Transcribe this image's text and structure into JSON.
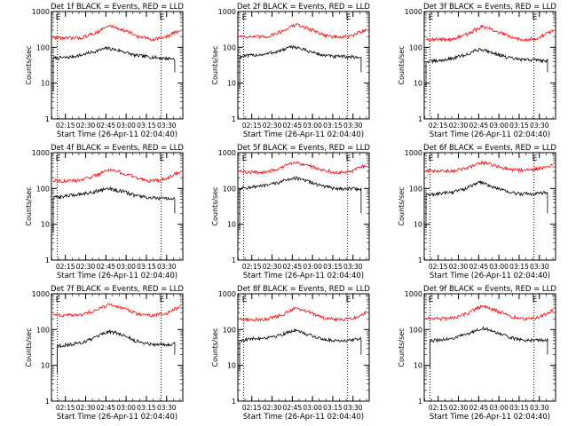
{
  "figure": {
    "panels": [
      {
        "title": "Det 1f BLACK = Events, RED = LLD"
      },
      {
        "title": "Det 2f BLACK = Events, RED = LLD"
      },
      {
        "title": "Det 3f BLACK = Events, RED = LLD"
      },
      {
        "title": "Det 4f BLACK = Events, RED = LLD"
      },
      {
        "title": "Det 5f BLACK = Events, RED = LLD"
      },
      {
        "title": "Det 6f BLACK = Events, RED = LLD"
      },
      {
        "title": "Det 7f BLACK = Events, RED = LLD"
      },
      {
        "title": "Det 8f BLACK = Events, RED = LLD"
      },
      {
        "title": "Det 9f BLACK = Events, RED = LLD"
      }
    ]
  },
  "chart_data": [
    {
      "type": "line",
      "title": "Det 1f BLACK = Events, RED = LLD",
      "xlabel": "Start Time (26-Apr-11 02:04:40)",
      "ylabel": "Counts/sec",
      "yscale": "log",
      "ylim": [
        1,
        1000
      ],
      "xlim": [
        "02:04:40",
        "03:42:00"
      ],
      "x_ticks": [
        "02:15",
        "02:30",
        "02:45",
        "03:00",
        "03:15",
        "03:30"
      ],
      "y_ticks": [
        "1",
        "10",
        "100",
        "1000"
      ],
      "markers": [
        {
          "label": "E",
          "x": "02:09"
        },
        {
          "label": "E",
          "x": "03:26"
        }
      ],
      "series": [
        {
          "color": "#000000",
          "start": "02:06",
          "end": "03:36",
          "values": [
            50,
            52,
            60,
            75,
            95,
            80,
            60,
            55,
            50,
            48
          ]
        },
        {
          "color": "#ff0000",
          "start": "02:06",
          "end": "03:40",
          "values": [
            190,
            180,
            185,
            250,
            400,
            300,
            200,
            170,
            190,
            300
          ]
        }
      ]
    },
    {
      "type": "line",
      "title": "Det 2f BLACK = Events, RED = LLD",
      "xlabel": "Start Time (26-Apr-11 02:04:40)",
      "ylabel": "Counts/sec",
      "yscale": "log",
      "ylim": [
        1,
        1000
      ],
      "xlim": [
        "02:04:40",
        "03:42:00"
      ],
      "x_ticks": [
        "02:15",
        "02:30",
        "02:45",
        "03:00",
        "03:15",
        "03:30"
      ],
      "y_ticks": [
        "1",
        "10",
        "100",
        "1000"
      ],
      "markers": [
        {
          "label": "E",
          "x": "02:09"
        },
        {
          "label": "E",
          "x": "03:26"
        }
      ],
      "series": [
        {
          "color": "#000000",
          "start": "02:06",
          "end": "03:36",
          "values": [
            55,
            60,
            65,
            80,
            105,
            80,
            62,
            55,
            55,
            52
          ]
        },
        {
          "color": "#ff0000",
          "start": "02:06",
          "end": "03:40",
          "values": [
            210,
            195,
            200,
            280,
            430,
            320,
            220,
            190,
            210,
            320
          ]
        }
      ]
    },
    {
      "type": "line",
      "title": "Det 3f BLACK = Events, RED = LLD",
      "xlabel": "Start Time (26-Apr-11 02:04:40)",
      "ylabel": "Counts/sec",
      "yscale": "log",
      "ylim": [
        1,
        1000
      ],
      "xlim": [
        "02:04:40",
        "03:42:00"
      ],
      "x_ticks": [
        "02:15",
        "02:30",
        "02:45",
        "03:00",
        "03:15",
        "03:30"
      ],
      "y_ticks": [
        "1",
        "10",
        "100",
        "1000"
      ],
      "markers": [
        {
          "label": "E",
          "x": "02:09"
        },
        {
          "label": "E",
          "x": "03:26"
        }
      ],
      "series": [
        {
          "color": "#000000",
          "start": "02:06",
          "end": "03:36",
          "values": [
            40,
            42,
            50,
            62,
            90,
            70,
            52,
            45,
            45,
            42
          ]
        },
        {
          "color": "#ff0000",
          "start": "02:06",
          "end": "03:40",
          "values": [
            170,
            165,
            170,
            240,
            380,
            280,
            190,
            165,
            180,
            290
          ]
        }
      ]
    },
    {
      "type": "line",
      "title": "Det 4f BLACK = Events, RED = LLD",
      "xlabel": "Start Time (26-Apr-11 02:04:40)",
      "ylabel": "Counts/sec",
      "yscale": "log",
      "ylim": [
        1,
        1000
      ],
      "xlim": [
        "02:04:40",
        "03:42:00"
      ],
      "x_ticks": [
        "02:15",
        "02:30",
        "02:45",
        "03:00",
        "03:15",
        "03:30"
      ],
      "y_ticks": [
        "1",
        "10",
        "100",
        "1000"
      ],
      "markers": [
        {
          "label": "E",
          "x": "02:09"
        },
        {
          "label": "E",
          "x": "03:26"
        }
      ],
      "series": [
        {
          "color": "#000000",
          "start": "02:06",
          "end": "03:36",
          "values": [
            55,
            62,
            70,
            80,
            100,
            85,
            65,
            55,
            52,
            50
          ]
        },
        {
          "color": "#ff0000",
          "start": "02:06",
          "end": "03:40",
          "values": [
            170,
            160,
            170,
            230,
            340,
            260,
            190,
            160,
            180,
            290
          ]
        }
      ]
    },
    {
      "type": "line",
      "title": "Det 5f BLACK = Events, RED = LLD",
      "xlabel": "Start Time (26-Apr-11 02:04:40)",
      "ylabel": "Counts/sec",
      "yscale": "log",
      "ylim": [
        1,
        1000
      ],
      "xlim": [
        "02:04:40",
        "03:42:00"
      ],
      "x_ticks": [
        "02:15",
        "02:30",
        "02:45",
        "03:00",
        "03:15",
        "03:30"
      ],
      "y_ticks": [
        "1",
        "10",
        "100",
        "1000"
      ],
      "markers": [
        {
          "label": "E",
          "x": "02:09"
        },
        {
          "label": "E",
          "x": "03:26"
        }
      ],
      "series": [
        {
          "color": "#000000",
          "start": "02:06",
          "end": "03:36",
          "values": [
            100,
            110,
            120,
            150,
            200,
            160,
            120,
            100,
            100,
            95
          ]
        },
        {
          "color": "#ff0000",
          "start": "02:06",
          "end": "03:40",
          "values": [
            300,
            280,
            290,
            380,
            550,
            420,
            320,
            280,
            300,
            450
          ]
        }
      ]
    },
    {
      "type": "line",
      "title": "Det 6f BLACK = Events, RED = LLD",
      "xlabel": "Start Time (26-Apr-11 02:04:40)",
      "ylabel": "Counts/sec",
      "yscale": "log",
      "ylim": [
        1,
        1000
      ],
      "xlim": [
        "02:04:40",
        "03:42:00"
      ],
      "x_ticks": [
        "02:15",
        "02:30",
        "02:45",
        "03:00",
        "03:15",
        "03:30"
      ],
      "y_ticks": [
        "1",
        "10",
        "100",
        "1000"
      ],
      "markers": [
        {
          "label": "E",
          "x": "02:09"
        },
        {
          "label": "E",
          "x": "03:26"
        }
      ],
      "series": [
        {
          "color": "#000000",
          "start": "02:06",
          "end": "03:36",
          "values": [
            65,
            72,
            80,
            100,
            150,
            110,
            80,
            70,
            72,
            78
          ]
        },
        {
          "color": "#ff0000",
          "start": "02:06",
          "end": "03:40",
          "values": [
            310,
            300,
            310,
            380,
            530,
            420,
            340,
            320,
            360,
            450
          ]
        }
      ]
    },
    {
      "type": "line",
      "title": "Det 7f BLACK = Events, RED = LLD",
      "xlabel": "Start Time (26-Apr-11 02:04:40)",
      "ylabel": "Counts/sec",
      "yscale": "log",
      "ylim": [
        1,
        1000
      ],
      "xlim": [
        "02:04:40",
        "03:42:00"
      ],
      "x_ticks": [
        "02:15",
        "02:30",
        "02:45",
        "03:00",
        "03:15",
        "03:30"
      ],
      "y_ticks": [
        "1",
        "10",
        "100",
        "1000"
      ],
      "markers": [
        {
          "label": "E",
          "x": "02:09"
        },
        {
          "label": "E",
          "x": "03:26"
        }
      ],
      "series": [
        {
          "color": "#000000",
          "start": "02:09",
          "end": "03:36",
          "values": [
            35,
            38,
            45,
            60,
            90,
            70,
            48,
            40,
            38,
            40
          ]
        },
        {
          "color": "#ff0000",
          "start": "02:06",
          "end": "03:40",
          "values": [
            260,
            250,
            260,
            340,
            500,
            380,
            270,
            250,
            280,
            420
          ]
        }
      ]
    },
    {
      "type": "line",
      "title": "Det 8f BLACK = Events, RED = LLD",
      "xlabel": "Start Time (26-Apr-11 02:04:40)",
      "ylabel": "Counts/sec",
      "yscale": "log",
      "ylim": [
        1,
        1000
      ],
      "xlim": [
        "02:04:40",
        "03:42:00"
      ],
      "x_ticks": [
        "02:15",
        "02:30",
        "02:45",
        "03:00",
        "03:15",
        "03:30"
      ],
      "y_ticks": [
        "1",
        "10",
        "100",
        "1000"
      ],
      "markers": [
        {
          "label": "E",
          "x": "02:09"
        },
        {
          "label": "E",
          "x": "03:26"
        }
      ],
      "series": [
        {
          "color": "#000000",
          "start": "02:06",
          "end": "03:36",
          "values": [
            50,
            55,
            60,
            70,
            95,
            75,
            55,
            50,
            50,
            55
          ]
        },
        {
          "color": "#ff0000",
          "start": "02:06",
          "end": "03:40",
          "values": [
            200,
            190,
            195,
            260,
            400,
            300,
            210,
            185,
            200,
            300
          ]
        }
      ]
    },
    {
      "type": "line",
      "title": "Det 9f BLACK = Events, RED = LLD",
      "xlabel": "Start Time (26-Apr-11 02:04:40)",
      "ylabel": "Counts/sec",
      "yscale": "log",
      "ylim": [
        1,
        1000
      ],
      "xlim": [
        "02:04:40",
        "03:42:00"
      ],
      "x_ticks": [
        "02:15",
        "02:30",
        "02:45",
        "03:00",
        "03:15",
        "03:30"
      ],
      "y_ticks": [
        "1",
        "10",
        "100",
        "1000"
      ],
      "markers": [
        {
          "label": "E",
          "x": "02:09"
        },
        {
          "label": "E",
          "x": "03:26"
        }
      ],
      "series": [
        {
          "color": "#000000",
          "start": "02:09",
          "end": "03:36",
          "values": [
            48,
            52,
            60,
            78,
            110,
            85,
            60,
            52,
            50,
            52
          ]
        },
        {
          "color": "#ff0000",
          "start": "02:06",
          "end": "03:40",
          "values": [
            210,
            200,
            210,
            290,
            450,
            340,
            230,
            200,
            220,
            340
          ]
        }
      ]
    }
  ]
}
